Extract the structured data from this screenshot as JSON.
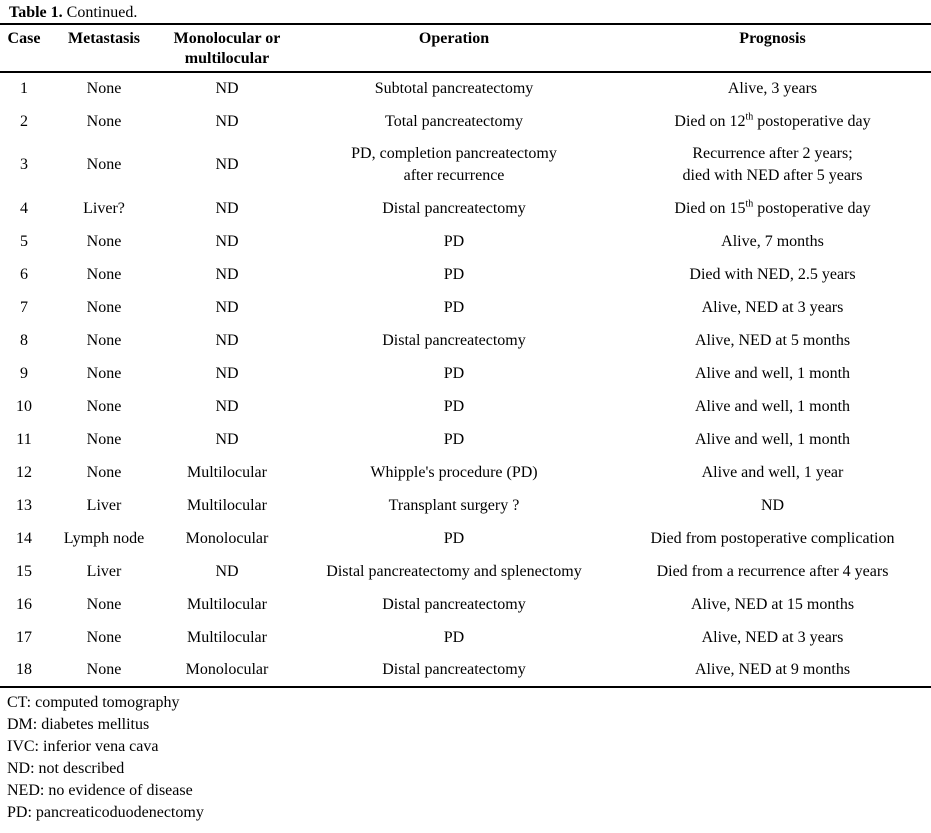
{
  "title": {
    "label": "Table 1.",
    "suffix": " Continued."
  },
  "colors": {
    "text": "#000000",
    "background": "#ffffff",
    "rule": "#000000"
  },
  "table": {
    "columns": [
      {
        "key": "case",
        "label": "Case"
      },
      {
        "key": "metastasis",
        "label": "Metastasis"
      },
      {
        "key": "locularity",
        "label": "Monolocular or\nmultilocular"
      },
      {
        "key": "operation",
        "label": "Operation"
      },
      {
        "key": "prognosis",
        "label": "Prognosis"
      }
    ],
    "rows": [
      {
        "case": "1",
        "metastasis": "None",
        "locularity": "ND",
        "operation": "Subtotal pancreatectomy",
        "prognosis": "Alive, 3 years"
      },
      {
        "case": "2",
        "metastasis": "None",
        "locularity": "ND",
        "operation": "Total pancreatectomy",
        "prognosis": [
          [
            {
              "t": "Died on 12"
            },
            {
              "t": "th",
              "sup": true
            },
            {
              "t": " postoperative day"
            }
          ]
        ]
      },
      {
        "case": "3",
        "metastasis": "None",
        "locularity": "ND",
        "operation": [
          "PD, completion pancreatectomy",
          "after recurrence"
        ],
        "prognosis": [
          "Recurrence after 2 years;",
          "died with NED after 5 years"
        ]
      },
      {
        "case": "4",
        "metastasis": "Liver?",
        "locularity": "ND",
        "operation": "Distal pancreatectomy",
        "prognosis": [
          [
            {
              "t": "Died on 15"
            },
            {
              "t": "th",
              "sup": true
            },
            {
              "t": " postoperative day"
            }
          ]
        ]
      },
      {
        "case": "5",
        "metastasis": "None",
        "locularity": "ND",
        "operation": "PD",
        "prognosis": "Alive, 7 months"
      },
      {
        "case": "6",
        "metastasis": "None",
        "locularity": "ND",
        "operation": "PD",
        "prognosis": "Died with NED, 2.5 years"
      },
      {
        "case": "7",
        "metastasis": "None",
        "locularity": "ND",
        "operation": "PD",
        "prognosis": "Alive, NED at 3 years"
      },
      {
        "case": "8",
        "metastasis": "None",
        "locularity": "ND",
        "operation": "Distal pancreatectomy",
        "prognosis": "Alive, NED at 5 months"
      },
      {
        "case": "9",
        "metastasis": "None",
        "locularity": "ND",
        "operation": "PD",
        "prognosis": "Alive and well, 1 month"
      },
      {
        "case": "10",
        "metastasis": "None",
        "locularity": "ND",
        "operation": "PD",
        "prognosis": "Alive and well, 1 month"
      },
      {
        "case": "11",
        "metastasis": "None",
        "locularity": "ND",
        "operation": "PD",
        "prognosis": "Alive and well, 1 month"
      },
      {
        "case": "12",
        "metastasis": "None",
        "locularity": "Multilocular",
        "operation": "Whipple's procedure (PD)",
        "prognosis": "Alive and well, 1 year"
      },
      {
        "case": "13",
        "metastasis": "Liver",
        "locularity": "Multilocular",
        "operation": "Transplant surgery ?",
        "prognosis": "ND"
      },
      {
        "case": "14",
        "metastasis": "Lymph node",
        "locularity": "Monolocular",
        "operation": "PD",
        "prognosis": "Died from postoperative complication"
      },
      {
        "case": "15",
        "metastasis": "Liver",
        "locularity": "ND",
        "operation": "Distal pancreatectomy and splenectomy",
        "prognosis": "Died from a recurrence after 4 years"
      },
      {
        "case": "16",
        "metastasis": "None",
        "locularity": "Multilocular",
        "operation": "Distal pancreatectomy",
        "prognosis": "Alive, NED at 15 months"
      },
      {
        "case": "17",
        "metastasis": "None",
        "locularity": "Multilocular",
        "operation": "PD",
        "prognosis": "Alive, NED at 3 years"
      },
      {
        "case": "18",
        "metastasis": "None",
        "locularity": "Monolocular",
        "operation": "Distal pancreatectomy",
        "prognosis": "Alive, NED at 9 months"
      }
    ]
  },
  "footnotes": [
    "CT: computed tomography",
    "DM: diabetes mellitus",
    "IVC: inferior vena cava",
    "ND: not described",
    "NED: no evidence of disease",
    "PD: pancreaticoduodenectomy"
  ]
}
